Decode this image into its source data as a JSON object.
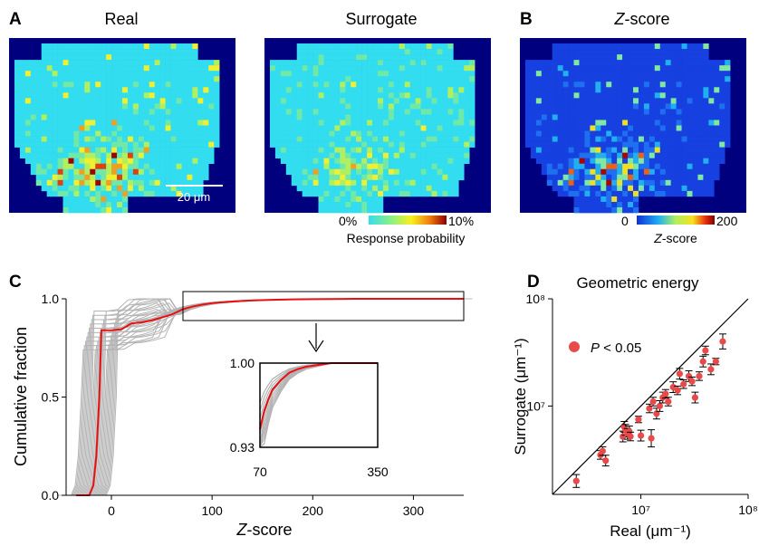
{
  "panels": {
    "a_label": "A",
    "b_label": "B",
    "c_label": "C",
    "d_label": "D",
    "real_title": "Real",
    "surrogate_title": "Surrogate",
    "zscore_title_italic": "Z",
    "zscore_title_rest": "-score",
    "scale_bar_label": "20 μm",
    "colorbar_prob_min": "0%",
    "colorbar_prob_max": "10%",
    "colorbar_prob_label": "Response probability",
    "colorbar_z_min": "0",
    "colorbar_z_max": "200",
    "colorbar_z_label_italic": "Z",
    "colorbar_z_label_rest": "-score",
    "d_title": "Geometric energy",
    "d_legend_italic": "P",
    "d_legend_rest": " < 0.05"
  },
  "colors": {
    "map_background": "#00007f",
    "map_base_cell": "#33ddf0",
    "zmap_base_cell": "#1640e0",
    "cdf_gray": "#b4b4b4",
    "cdf_red": "#e81010",
    "scatter_red": "#e84a4a"
  },
  "chart_data": [
    {
      "type": "line",
      "id": "C",
      "xlabel_italic": "Z",
      "xlabel_rest": "-score",
      "ylabel": "Cumulative fraction",
      "xlim": [
        -45,
        350
      ],
      "ylim": [
        0,
        1.0
      ],
      "xticks": [
        "0",
        "100",
        "200",
        "300"
      ],
      "yticks": [
        "0.0",
        "0.5",
        "1.0"
      ],
      "median": {
        "x": [
          -35,
          -22,
          -18,
          -15,
          -12,
          -10,
          0,
          10,
          15,
          20,
          30,
          40,
          50,
          60,
          70,
          80,
          90,
          100,
          120,
          140,
          160,
          180,
          200,
          240,
          280,
          350
        ],
        "y": [
          0,
          0,
          0.05,
          0.2,
          0.5,
          0.84,
          0.84,
          0.845,
          0.86,
          0.875,
          0.88,
          0.89,
          0.905,
          0.92,
          0.945,
          0.96,
          0.97,
          0.978,
          0.986,
          0.992,
          0.995,
          0.997,
          0.998,
          1.0,
          1.0,
          1.0
        ]
      },
      "inset": {
        "xlim": [
          70,
          350
        ],
        "ylim": [
          0.93,
          1.0
        ],
        "xticks": [
          "70",
          "350"
        ],
        "yticks": [
          "0.93",
          "1.00"
        ]
      }
    },
    {
      "type": "scatter",
      "id": "D",
      "xlabel": "Real (μm⁻¹)",
      "ylabel": "Surrogate (μm⁻¹)",
      "scale": "log",
      "xlim": [
        1500000,
        100000000
      ],
      "ylim": [
        1500000,
        100000000
      ],
      "xticks": [
        "10⁷",
        "10⁸"
      ],
      "yticks": [
        "10⁷",
        "10⁸"
      ],
      "points": [
        {
          "x": 2500000,
          "y": 2000000,
          "err": 0.06
        },
        {
          "x": 4200000,
          "y": 3500000,
          "err": 0.04
        },
        {
          "x": 4400000,
          "y": 3800000,
          "err": 0.04
        },
        {
          "x": 4700000,
          "y": 3100000,
          "err": 0.05
        },
        {
          "x": 6800000,
          "y": 5200000,
          "err": 0.05
        },
        {
          "x": 7000000,
          "y": 6400000,
          "err": 0.05
        },
        {
          "x": 7200000,
          "y": 6000000,
          "err": 0.05
        },
        {
          "x": 7500000,
          "y": 5500000,
          "err": 0.05
        },
        {
          "x": 7800000,
          "y": 5800000,
          "err": 0.05
        },
        {
          "x": 8000000,
          "y": 5200000,
          "err": 0.04
        },
        {
          "x": 9500000,
          "y": 7500000,
          "err": 0.03
        },
        {
          "x": 10000000,
          "y": 5300000,
          "err": 0.05
        },
        {
          "x": 12000000,
          "y": 9500000,
          "err": 0.04
        },
        {
          "x": 12500000,
          "y": 5000000,
          "err": 0.08
        },
        {
          "x": 13000000,
          "y": 11000000,
          "err": 0.04
        },
        {
          "x": 14000000,
          "y": 8500000,
          "err": 0.05
        },
        {
          "x": 15000000,
          "y": 10000000,
          "err": 0.05
        },
        {
          "x": 16000000,
          "y": 12000000,
          "err": 0.05
        },
        {
          "x": 17000000,
          "y": 13000000,
          "err": 0.04
        },
        {
          "x": 18000000,
          "y": 11000000,
          "err": 0.04
        },
        {
          "x": 20000000,
          "y": 15000000,
          "err": 0.05
        },
        {
          "x": 22000000,
          "y": 14000000,
          "err": 0.04
        },
        {
          "x": 23000000,
          "y": 20000000,
          "err": 0.05
        },
        {
          "x": 25000000,
          "y": 16000000,
          "err": 0.04
        },
        {
          "x": 28000000,
          "y": 19000000,
          "err": 0.05
        },
        {
          "x": 30000000,
          "y": 17000000,
          "err": 0.04
        },
        {
          "x": 32000000,
          "y": 12000000,
          "err": 0.05
        },
        {
          "x": 35000000,
          "y": 19000000,
          "err": 0.04
        },
        {
          "x": 38000000,
          "y": 26000000,
          "err": 0.05
        },
        {
          "x": 40000000,
          "y": 33000000,
          "err": 0.04
        },
        {
          "x": 45000000,
          "y": 22000000,
          "err": 0.05
        },
        {
          "x": 50000000,
          "y": 26000000,
          "err": 0.03
        },
        {
          "x": 58000000,
          "y": 40000000,
          "err": 0.07
        }
      ]
    }
  ]
}
